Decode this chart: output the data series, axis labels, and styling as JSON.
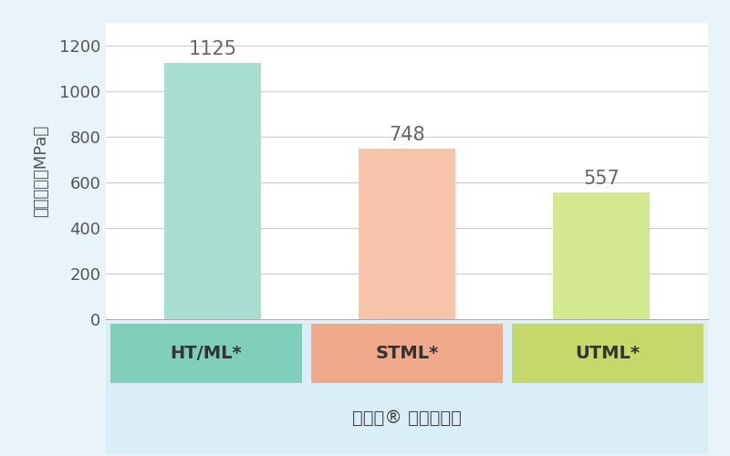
{
  "categories": [
    "HT/ML*",
    "STML*",
    "UTML*"
  ],
  "values": [
    1125,
    748,
    557
  ],
  "bar_colors": [
    "#a8ddd1",
    "#f5c4aa",
    "#d4e890"
  ],
  "label_bg_colors": [
    "#7eceba",
    "#f0a98a",
    "#c4d96a"
  ],
  "value_labels": [
    "1125",
    "748",
    "557"
  ],
  "ylabel": "曲げ強さ（MPa）",
  "xlabel": "カタナ® ジルコニア",
  "ylim": [
    0,
    1300
  ],
  "yticks": [
    0,
    200,
    400,
    600,
    800,
    1000,
    1200
  ],
  "figure_bg_color": "#e8f4fa",
  "plot_bg_color": "#ffffff",
  "grid_color": "#cccccc",
  "label_area_bg": "#daeef8",
  "bar_width": 0.5,
  "x_positions": [
    0,
    1,
    2
  ]
}
